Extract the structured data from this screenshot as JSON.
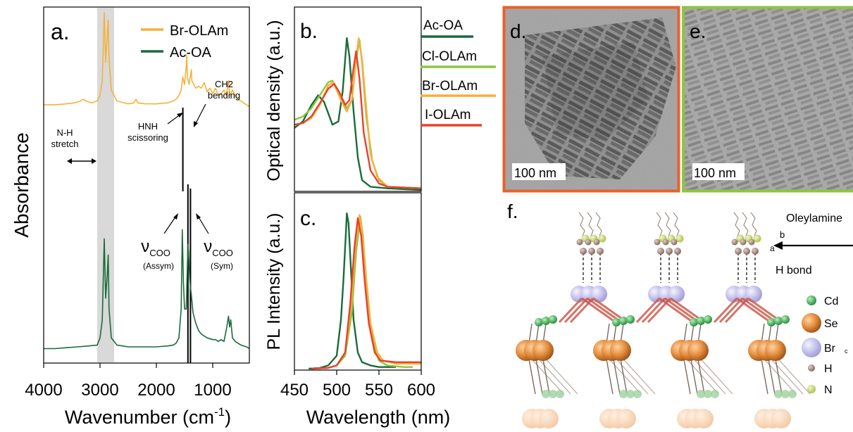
{
  "chart_data": [
    {
      "panel": "a.",
      "type": "line",
      "xlabel": "Wavenumber (cm",
      "xlabel_sup": "-1",
      "xlabel_close": ")",
      "ylabel": "Absorbance",
      "xlim": [
        4000,
        350
      ],
      "ylim": [
        0,
        1
      ],
      "x_ticks": [
        4000,
        3000,
        2000,
        1000
      ],
      "x_tick_labels": [
        "4000",
        "3000",
        "2000",
        "1000"
      ],
      "shaded_band": [
        3050,
        2750
      ],
      "vlines": [
        1530,
        1440,
        1395
      ],
      "series": [
        {
          "name": "Br-OLAm",
          "color": "#F5B13B",
          "points": [
            [
              4000,
              0.47
            ],
            [
              3800,
              0.47
            ],
            [
              3600,
              0.475
            ],
            [
              3450,
              0.48
            ],
            [
              3350,
              0.49
            ],
            [
              3300,
              0.5
            ],
            [
              3250,
              0.49
            ],
            [
              3150,
              0.48
            ],
            [
              3050,
              0.49
            ],
            [
              3000,
              0.52
            ],
            [
              2960,
              0.6
            ],
            [
              2925,
              0.97
            ],
            [
              2900,
              0.7
            ],
            [
              2870,
              0.86
            ],
            [
              2855,
              0.93
            ],
            [
              2840,
              0.72
            ],
            [
              2800,
              0.55
            ],
            [
              2700,
              0.49
            ],
            [
              2500,
              0.475
            ],
            [
              2400,
              0.48
            ],
            [
              2360,
              0.5
            ],
            [
              2330,
              0.48
            ],
            [
              2200,
              0.475
            ],
            [
              2000,
              0.475
            ],
            [
              1800,
              0.48
            ],
            [
              1700,
              0.49
            ],
            [
              1650,
              0.5
            ],
            [
              1600,
              0.52
            ],
            [
              1560,
              0.55
            ],
            [
              1530,
              0.62
            ],
            [
              1500,
              0.58
            ],
            [
              1470,
              0.68
            ],
            [
              1460,
              0.74
            ],
            [
              1450,
              0.62
            ],
            [
              1420,
              0.58
            ],
            [
              1380,
              0.66
            ],
            [
              1370,
              0.6
            ],
            [
              1300,
              0.56
            ],
            [
              1250,
              0.57
            ],
            [
              1200,
              0.56
            ],
            [
              1150,
              0.59
            ],
            [
              1100,
              0.54
            ],
            [
              1050,
              0.56
            ],
            [
              1000,
              0.53
            ],
            [
              950,
              0.56
            ],
            [
              900,
              0.52
            ],
            [
              850,
              0.53
            ],
            [
              800,
              0.55
            ],
            [
              760,
              0.52
            ],
            [
              720,
              0.6
            ],
            [
              700,
              0.52
            ],
            [
              650,
              0.55
            ],
            [
              600,
              0.52
            ],
            [
              550,
              0.5
            ],
            [
              500,
              0.49
            ],
            [
              450,
              0.48
            ],
            [
              400,
              0.47
            ],
            [
              350,
              0.46
            ]
          ]
        },
        {
          "name": "Ac-OA",
          "color": "#1B6B3A",
          "points": [
            [
              4000,
              0.08
            ],
            [
              3800,
              0.08
            ],
            [
              3600,
              0.085
            ],
            [
              3400,
              0.09
            ],
            [
              3200,
              0.095
            ],
            [
              3050,
              0.1
            ],
            [
              3000,
              0.14
            ],
            [
              2960,
              0.24
            ],
            [
              2925,
              0.69
            ],
            [
              2900,
              0.36
            ],
            [
              2870,
              0.5
            ],
            [
              2855,
              0.6
            ],
            [
              2840,
              0.3
            ],
            [
              2800,
              0.14
            ],
            [
              2700,
              0.1
            ],
            [
              2500,
              0.09
            ],
            [
              2300,
              0.09
            ],
            [
              2000,
              0.09
            ],
            [
              1800,
              0.095
            ],
            [
              1700,
              0.1
            ],
            [
              1650,
              0.11
            ],
            [
              1600,
              0.14
            ],
            [
              1560,
              0.3
            ],
            [
              1540,
              0.74
            ],
            [
              1520,
              0.45
            ],
            [
              1500,
              0.3
            ],
            [
              1470,
              0.3
            ],
            [
              1440,
              0.66
            ],
            [
              1430,
              0.62
            ],
            [
              1410,
              0.48
            ],
            [
              1395,
              0.42
            ],
            [
              1380,
              0.38
            ],
            [
              1350,
              0.28
            ],
            [
              1300,
              0.22
            ],
            [
              1250,
              0.18
            ],
            [
              1200,
              0.16
            ],
            [
              1100,
              0.14
            ],
            [
              1000,
              0.13
            ],
            [
              950,
              0.13
            ],
            [
              900,
              0.12
            ],
            [
              850,
              0.13
            ],
            [
              800,
              0.12
            ],
            [
              750,
              0.2
            ],
            [
              720,
              0.26
            ],
            [
              700,
              0.2
            ],
            [
              680,
              0.24
            ],
            [
              650,
              0.14
            ],
            [
              600,
              0.12
            ],
            [
              500,
              0.1
            ],
            [
              400,
              0.09
            ],
            [
              350,
              0.08
            ]
          ]
        }
      ],
      "annotations": {
        "nh_stretch": [
          "N-H",
          "stretch"
        ],
        "hnh": [
          "HNH",
          "scissoring"
        ],
        "ch2": [
          "CH2",
          "bending"
        ],
        "nu": "ν",
        "coo_sub": "COO",
        "assym": "(Assym)",
        "sym": "(Sym)"
      }
    },
    {
      "panel": "b.",
      "type": "line",
      "ylabel": "Optical density (a.u.)",
      "xlim": [
        450,
        600
      ],
      "ylim": [
        0,
        1
      ],
      "series": [
        {
          "name": "Ac-OA",
          "color": "#1B6B3A",
          "points": [
            [
              450,
              0.38
            ],
            [
              460,
              0.42
            ],
            [
              470,
              0.52
            ],
            [
              478,
              0.58
            ],
            [
              485,
              0.54
            ],
            [
              495,
              0.4
            ],
            [
              502,
              0.42
            ],
            [
              507,
              0.6
            ],
            [
              512,
              0.93
            ],
            [
              515,
              0.82
            ],
            [
              520,
              0.48
            ],
            [
              525,
              0.2
            ],
            [
              530,
              0.06
            ],
            [
              540,
              0.02
            ],
            [
              560,
              0.01
            ],
            [
              600,
              0.0
            ]
          ]
        },
        {
          "name": "Cl-OLAm",
          "color": "#8CC63F",
          "points": [
            [
              450,
              0.43
            ],
            [
              460,
              0.45
            ],
            [
              470,
              0.5
            ],
            [
              480,
              0.58
            ],
            [
              490,
              0.66
            ],
            [
              495,
              0.67
            ],
            [
              505,
              0.58
            ],
            [
              512,
              0.5
            ],
            [
              518,
              0.55
            ],
            [
              523,
              0.8
            ],
            [
              527,
              0.92
            ],
            [
              530,
              0.78
            ],
            [
              535,
              0.45
            ],
            [
              542,
              0.18
            ],
            [
              550,
              0.06
            ],
            [
              560,
              0.02
            ],
            [
              600,
              0.01
            ]
          ]
        },
        {
          "name": "Br-OLAm",
          "color": "#F5B13B",
          "points": [
            [
              450,
              0.4
            ],
            [
              460,
              0.41
            ],
            [
              470,
              0.44
            ],
            [
              480,
              0.52
            ],
            [
              490,
              0.64
            ],
            [
              496,
              0.66
            ],
            [
              505,
              0.55
            ],
            [
              512,
              0.48
            ],
            [
              518,
              0.55
            ],
            [
              523,
              0.8
            ],
            [
              526,
              0.93
            ],
            [
              530,
              0.8
            ],
            [
              535,
              0.5
            ],
            [
              540,
              0.22
            ],
            [
              548,
              0.08
            ],
            [
              560,
              0.02
            ],
            [
              600,
              0.01
            ]
          ]
        },
        {
          "name": "I-OLAm",
          "color": "#E8412C",
          "points": [
            [
              450,
              0.4
            ],
            [
              460,
              0.41
            ],
            [
              470,
              0.45
            ],
            [
              480,
              0.53
            ],
            [
              490,
              0.62
            ],
            [
              497,
              0.65
            ],
            [
              503,
              0.6
            ],
            [
              510,
              0.52
            ],
            [
              515,
              0.55
            ],
            [
              520,
              0.75
            ],
            [
              523,
              0.85
            ],
            [
              527,
              0.68
            ],
            [
              532,
              0.35
            ],
            [
              540,
              0.12
            ],
            [
              550,
              0.04
            ],
            [
              560,
              0.02
            ],
            [
              600,
              0.01
            ]
          ]
        }
      ]
    },
    {
      "panel": "c.",
      "type": "line",
      "ylabel": "PL Intensity (a.u.)",
      "xlabel": "Wavelength (nm)",
      "xlim": [
        450,
        600
      ],
      "x_ticks": [
        450,
        500,
        550,
        600
      ],
      "x_tick_labels": [
        "450",
        "500",
        "550",
        "600"
      ],
      "ylim": [
        0,
        1
      ],
      "series": [
        {
          "name": "Ac-OA",
          "color": "#1B6B3A",
          "points": [
            [
              467,
              0.0
            ],
            [
              480,
              0.005
            ],
            [
              490,
              0.02
            ],
            [
              500,
              0.08
            ],
            [
              505,
              0.3
            ],
            [
              508,
              0.55
            ],
            [
              511,
              0.85
            ],
            [
              512,
              0.96
            ],
            [
              514,
              0.9
            ],
            [
              517,
              0.6
            ],
            [
              520,
              0.3
            ],
            [
              525,
              0.1
            ],
            [
              530,
              0.04
            ],
            [
              540,
              0.02
            ],
            [
              550,
              0.01
            ],
            [
              560,
              0.01
            ],
            [
              570,
              0.01
            ]
          ]
        },
        {
          "name": "Cl-OLAm",
          "color": "#8CC63F",
          "points": [
            [
              470,
              0.0
            ],
            [
              490,
              0.005
            ],
            [
              500,
              0.02
            ],
            [
              510,
              0.08
            ],
            [
              518,
              0.35
            ],
            [
              523,
              0.72
            ],
            [
              528,
              0.94
            ],
            [
              531,
              0.82
            ],
            [
              535,
              0.55
            ],
            [
              540,
              0.28
            ],
            [
              545,
              0.12
            ],
            [
              550,
              0.05
            ],
            [
              560,
              0.02
            ],
            [
              580,
              0.01
            ],
            [
              590,
              0.01
            ]
          ]
        },
        {
          "name": "Br-OLAm",
          "color": "#F5B13B",
          "points": [
            [
              470,
              0.0
            ],
            [
              490,
              0.005
            ],
            [
              500,
              0.02
            ],
            [
              510,
              0.1
            ],
            [
              517,
              0.38
            ],
            [
              522,
              0.75
            ],
            [
              527,
              0.95
            ],
            [
              530,
              0.85
            ],
            [
              535,
              0.55
            ],
            [
              540,
              0.28
            ],
            [
              548,
              0.1
            ],
            [
              555,
              0.05
            ],
            [
              570,
              0.03
            ],
            [
              590,
              0.03
            ],
            [
              600,
              0.03
            ]
          ]
        },
        {
          "name": "I-OLAm",
          "color": "#E8412C",
          "points": [
            [
              470,
              0.0
            ],
            [
              490,
              0.005
            ],
            [
              500,
              0.02
            ],
            [
              510,
              0.1
            ],
            [
              516,
              0.4
            ],
            [
              521,
              0.75
            ],
            [
              525,
              0.93
            ],
            [
              529,
              0.82
            ],
            [
              533,
              0.55
            ],
            [
              538,
              0.28
            ],
            [
              545,
              0.1
            ],
            [
              552,
              0.05
            ],
            [
              570,
              0.04
            ],
            [
              590,
              0.04
            ],
            [
              600,
              0.04
            ]
          ]
        }
      ]
    }
  ],
  "images": [
    {
      "panel": "d.",
      "scale": "100 nm",
      "frame_color": "#E8622C"
    },
    {
      "panel": "e.",
      "scale": "100 nm",
      "frame_color": "#8DC63F"
    }
  ],
  "structure": {
    "panel": "f.",
    "ligand": "Oleylamine",
    "bond": "H bond",
    "axis_b": "b",
    "axis_a": "a",
    "axis_c": "c",
    "legend": [
      {
        "label": "Cd",
        "color": "#2FA84F"
      },
      {
        "label": "Se",
        "color": "#E8903A"
      },
      {
        "label": "Br",
        "color": "#B8B6EA"
      },
      {
        "label": "H",
        "color": "#9A8278"
      },
      {
        "label": "N",
        "color": "#C7D97A"
      }
    ]
  }
}
